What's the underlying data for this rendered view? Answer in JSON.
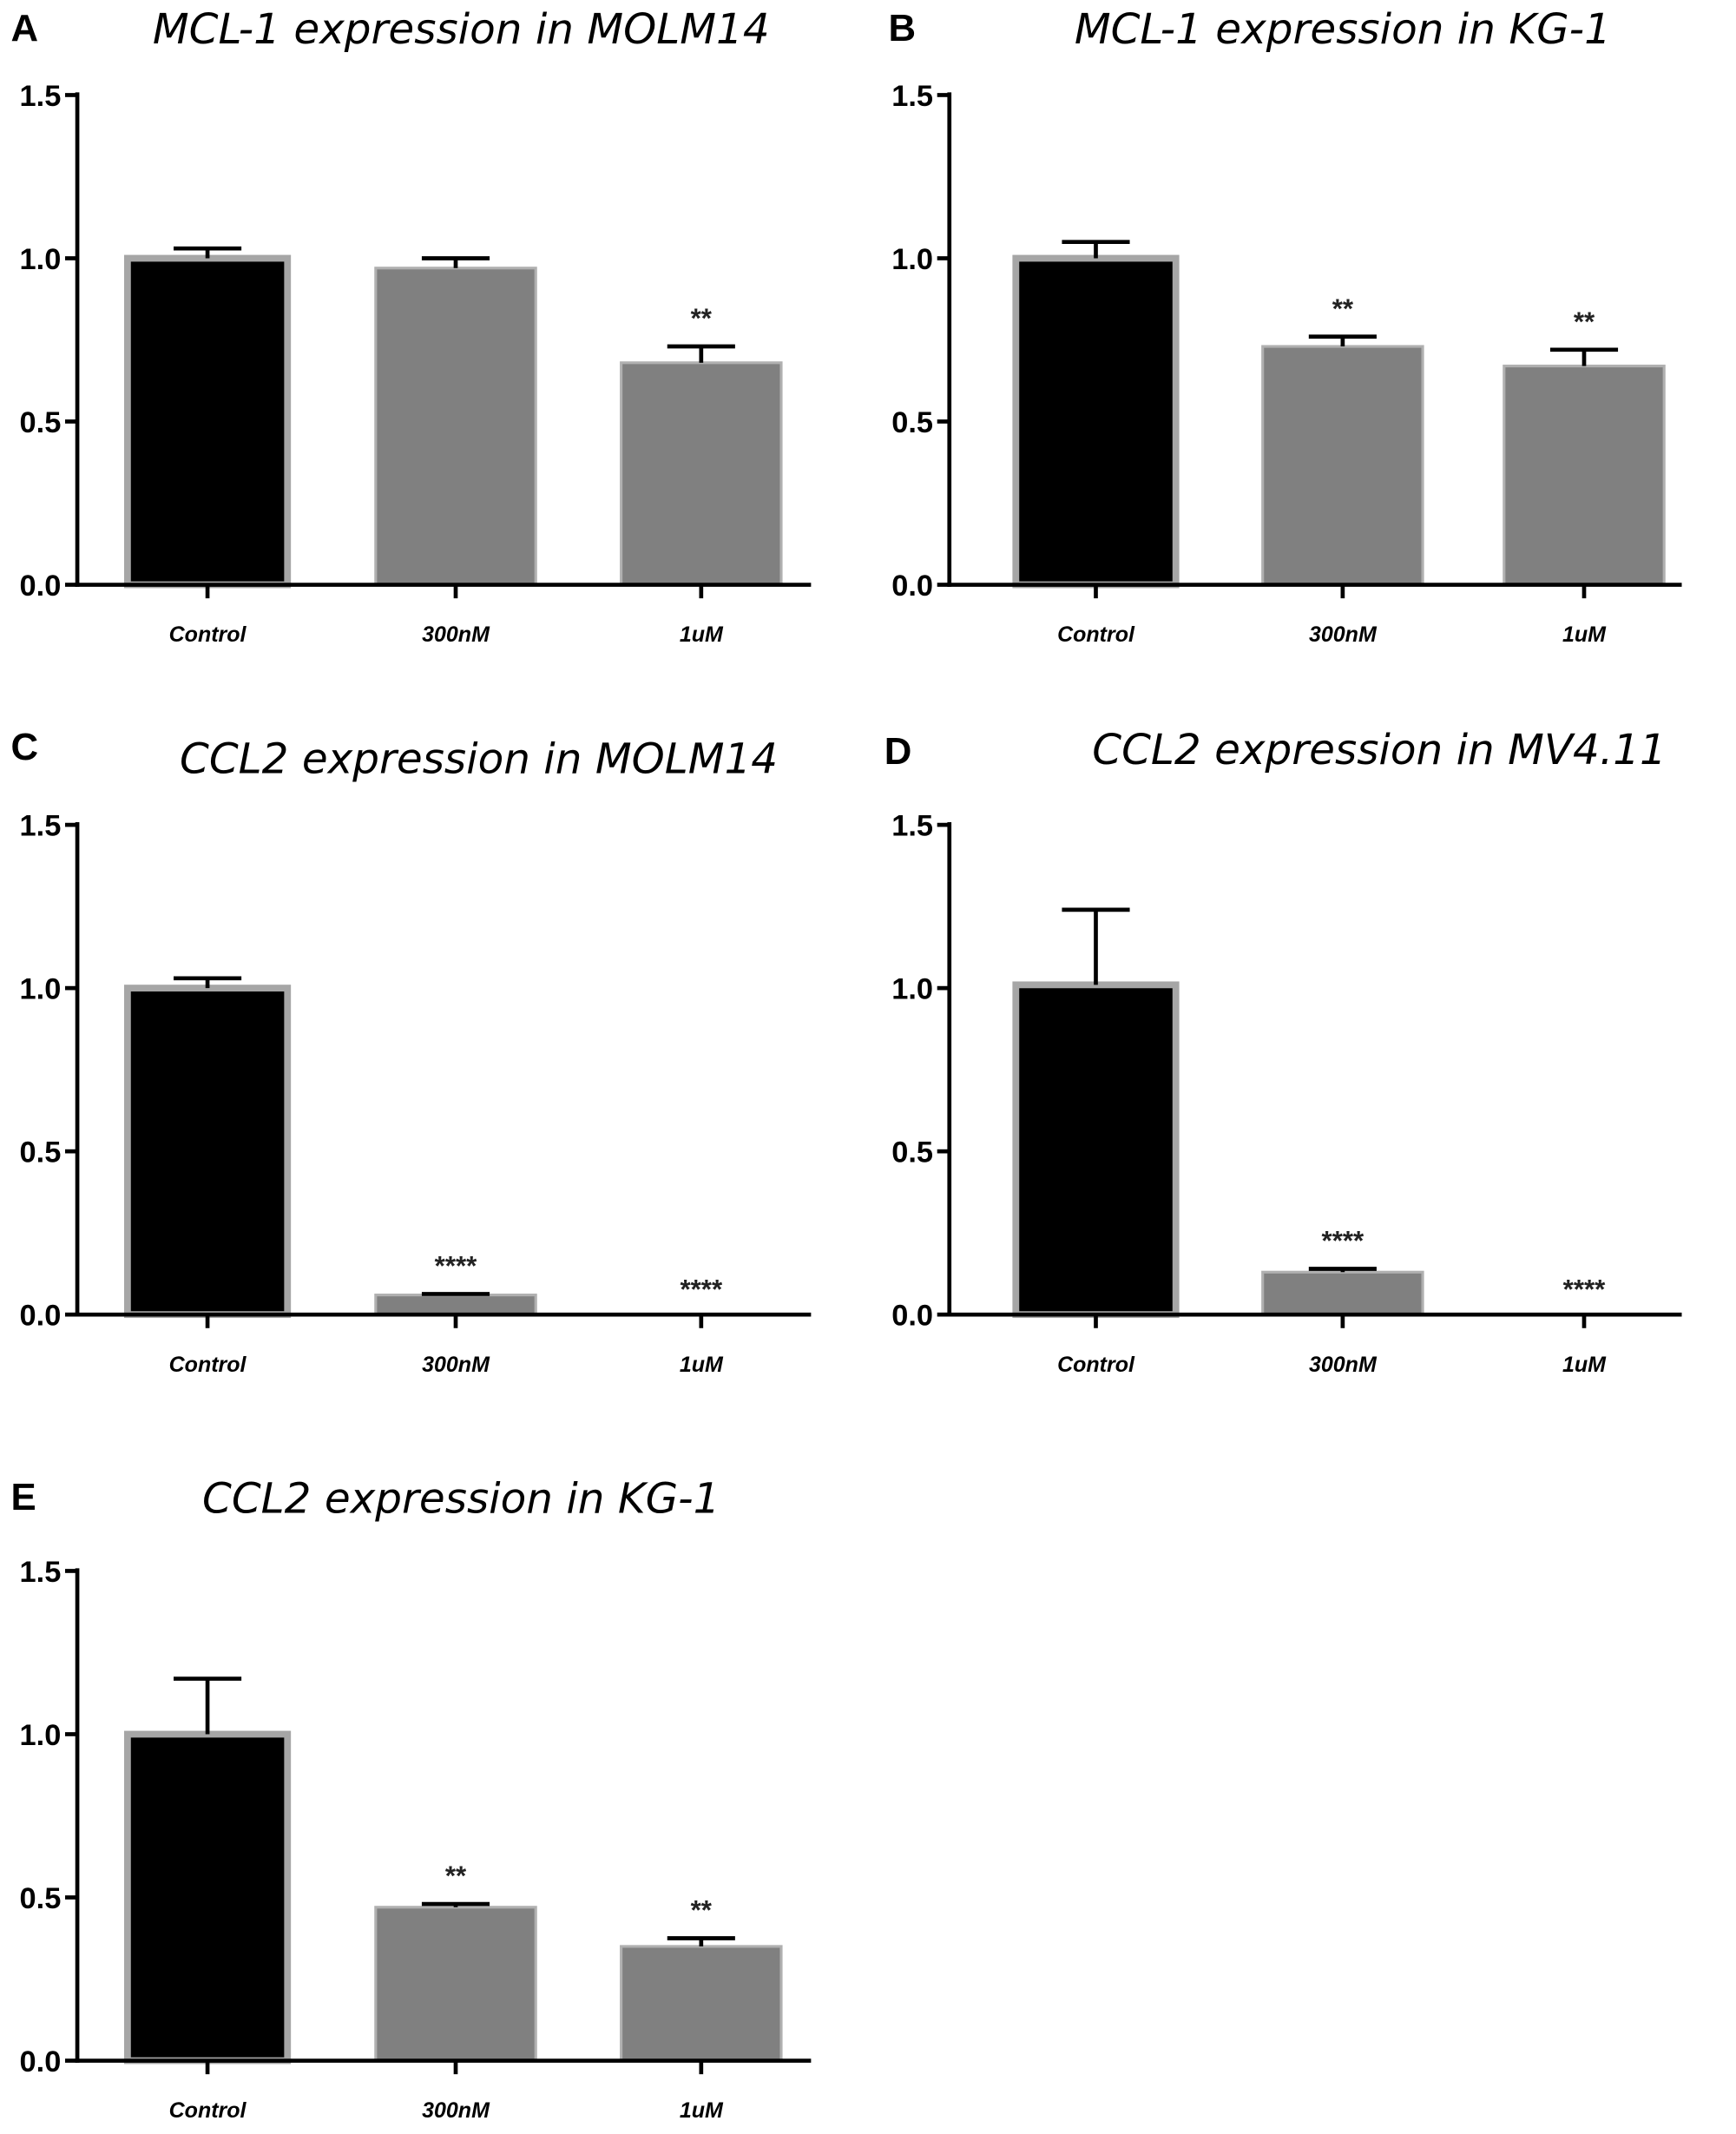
{
  "chart_data": [
    {
      "type": "bar",
      "panel": "A",
      "title": "MCL-1 expression in MOLM14",
      "categories": [
        "Control",
        "300nM",
        "1uM"
      ],
      "values": [
        1.0,
        0.97,
        0.68
      ],
      "errors": [
        0.03,
        0.03,
        0.05
      ],
      "significance": [
        "",
        "",
        "**"
      ],
      "ylim": [
        0,
        1.5
      ],
      "yticks": [
        "0.0",
        "0.5",
        "1.0",
        "1.5"
      ]
    },
    {
      "type": "bar",
      "panel": "B",
      "title": "MCL-1 expression in KG-1",
      "categories": [
        "Control",
        "300nM",
        "1uM"
      ],
      "values": [
        1.0,
        0.73,
        0.67
      ],
      "errors": [
        0.05,
        0.03,
        0.05
      ],
      "significance": [
        "",
        "**",
        "**"
      ],
      "ylim": [
        0,
        1.5
      ],
      "yticks": [
        "0.0",
        "0.5",
        "1.0",
        "1.5"
      ]
    },
    {
      "type": "bar",
      "panel": "C",
      "title": "CCL2 expression in MOLM14",
      "categories": [
        "Control",
        "300nM",
        "1uM"
      ],
      "values": [
        1.0,
        0.06,
        0.0
      ],
      "errors": [
        0.03,
        0.003,
        0.0
      ],
      "significance": [
        "",
        "****",
        "****"
      ],
      "ylim": [
        0,
        1.5
      ],
      "yticks": [
        "0.0",
        "0.5",
        "1.0",
        "1.5"
      ]
    },
    {
      "type": "bar",
      "panel": "D",
      "title": "CCL2 expression in MV4.11",
      "categories": [
        "Control",
        "300nM",
        "1uM"
      ],
      "values": [
        1.01,
        0.13,
        0.0
      ],
      "errors": [
        0.23,
        0.01,
        0.0
      ],
      "significance": [
        "",
        "****",
        "****"
      ],
      "ylim": [
        0,
        1.5
      ],
      "yticks": [
        "0.0",
        "0.5",
        "1.0",
        "1.5"
      ]
    },
    {
      "type": "bar",
      "panel": "E",
      "title": "CCL2 expression in KG-1",
      "categories": [
        "Control",
        "300nM",
        "1uM"
      ],
      "values": [
        1.0,
        0.47,
        0.35
      ],
      "errors": [
        0.17,
        0.01,
        0.025
      ],
      "significance": [
        "",
        "**",
        "**"
      ],
      "ylim": [
        0,
        1.5
      ],
      "yticks": [
        "0.0",
        "0.5",
        "1.0",
        "1.5"
      ]
    }
  ],
  "colors": {
    "control_fill": "#000000",
    "control_edge": "#a6a6a6",
    "treated_fill": "#808080",
    "treated_edge": "#b0b0b0",
    "axis": "#000000"
  }
}
